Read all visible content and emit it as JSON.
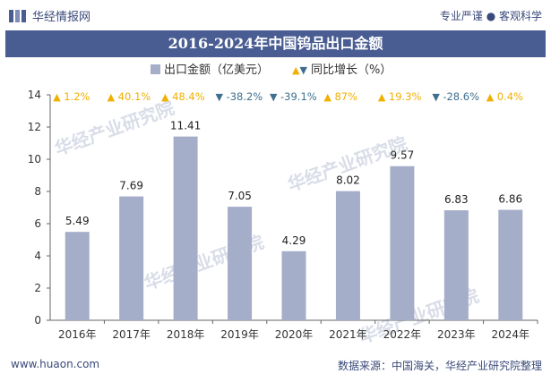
{
  "header": {
    "brand": "华经情报网",
    "slogan": "专业严谨 ● 客观科学"
  },
  "chart_data": {
    "type": "bar",
    "title": "2016-2024年中国钨品出口金额",
    "categories": [
      "2016年",
      "2017年",
      "2018年",
      "2019年",
      "2020年",
      "2021年",
      "2022年",
      "2023年",
      "2024年"
    ],
    "series": [
      {
        "name": "出口金额（亿美元）",
        "values": [
          5.49,
          7.69,
          11.41,
          7.05,
          4.29,
          8.02,
          9.57,
          6.83,
          6.86
        ],
        "color": "#a5aec9"
      }
    ],
    "growth": {
      "name": "同比增长（%）",
      "labels": [
        "1.2%",
        "40.1%",
        "48.4%",
        "-38.2%",
        "-39.1%",
        "87%",
        "19.3%",
        "-28.6%",
        "0.4%"
      ],
      "directions": [
        "up",
        "up",
        "up",
        "down",
        "down",
        "up",
        "up",
        "down",
        "up"
      ],
      "up_color": "#f0b000",
      "down_color": "#3e6f8e"
    },
    "ylim": [
      0,
      14
    ],
    "yticks": [
      0,
      2,
      4,
      6,
      8,
      10,
      12,
      14
    ],
    "legend_position": "top-center",
    "grid": false
  },
  "watermark": "华经产业研究院",
  "footer": {
    "url": "www.huaon.com",
    "source": "数据来源：中国海关，华经产业研究院整理"
  }
}
